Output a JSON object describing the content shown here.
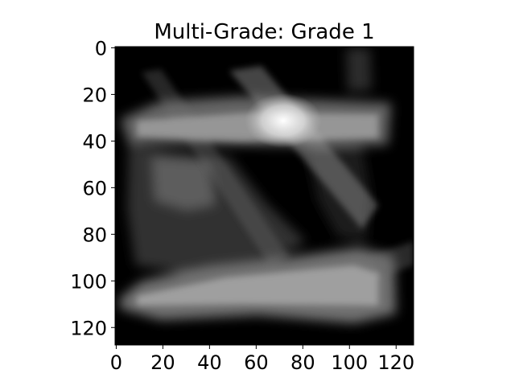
{
  "chart_data": {
    "type": "heatmap",
    "title": "Multi-Grade: Grade 1",
    "xlabel": "",
    "ylabel": "",
    "colormap": "gray",
    "background_color": "#000000",
    "xlim": [
      0,
      127
    ],
    "ylim": [
      127,
      0
    ],
    "x_ticks": [
      0,
      20,
      40,
      60,
      80,
      100,
      120
    ],
    "y_ticks": [
      0,
      20,
      40,
      60,
      80,
      100,
      120
    ],
    "x_tick_labels": [
      "0",
      "20",
      "40",
      "60",
      "80",
      "100",
      "120"
    ],
    "y_tick_labels": [
      "0",
      "20",
      "40",
      "60",
      "80",
      "100",
      "120"
    ],
    "grid": false,
    "image_size": [
      128,
      128
    ]
  }
}
